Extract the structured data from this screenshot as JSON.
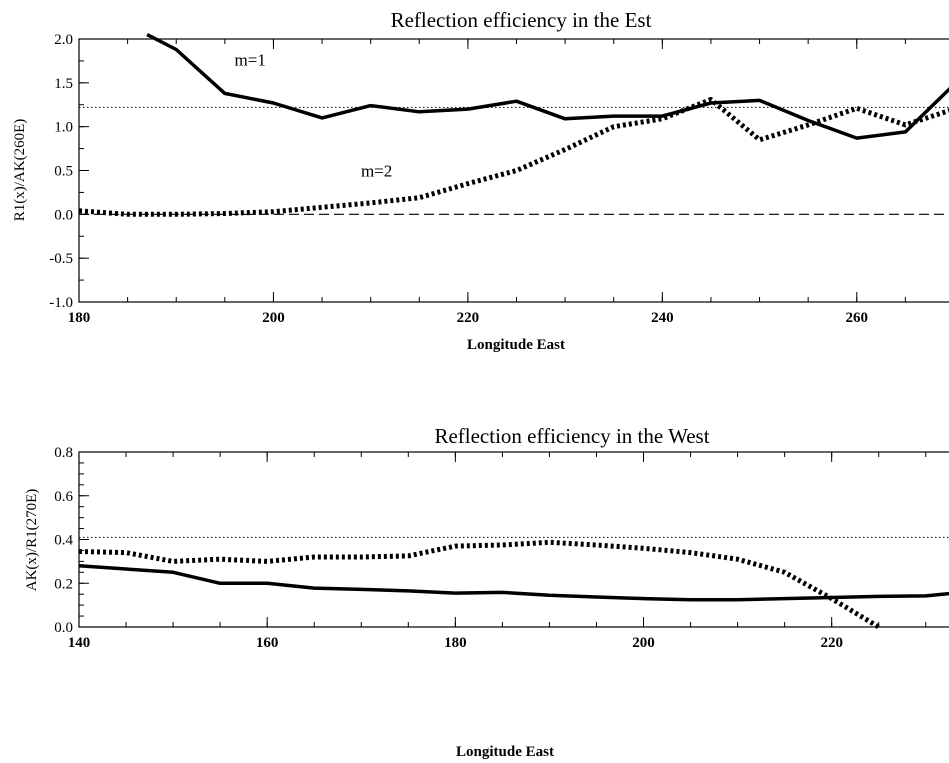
{
  "chart_data": [
    {
      "type": "line",
      "title": "Reflection efficiency in the Est",
      "xlabel": "Longitude East",
      "ylabel": "R1(x)/AK(260E)",
      "xlim": [
        180,
        270
      ],
      "ylim": [
        -1.0,
        2.0
      ],
      "xticks": [
        180,
        200,
        220,
        240,
        260
      ],
      "xtick_labels": [
        "180",
        "200",
        "220",
        "240",
        "260"
      ],
      "yticks": [
        -1.0,
        -0.5,
        0.0,
        0.5,
        1.0,
        1.5,
        2.0
      ],
      "ytick_labels": [
        "-1.0",
        "-0.5",
        "0.0",
        "0.5",
        "1.0",
        "1.5",
        "2.0"
      ],
      "reference_lines": [
        {
          "y": 1.22,
          "style": "dotted"
        },
        {
          "y": 0.0,
          "style": "dashed"
        }
      ],
      "annotations": [
        {
          "text": "m=1",
          "x": 196,
          "y": 1.7
        },
        {
          "text": "m=2",
          "x": 209,
          "y": 0.43
        }
      ],
      "series": [
        {
          "name": "m=1",
          "style": "solid",
          "x": [
            187,
            190,
            195,
            200,
            205,
            210,
            215,
            220,
            225,
            230,
            235,
            240,
            245,
            250,
            255,
            260,
            265,
            270
          ],
          "y": [
            2.05,
            1.88,
            1.38,
            1.27,
            1.1,
            1.24,
            1.17,
            1.2,
            1.29,
            1.09,
            1.12,
            1.12,
            1.27,
            1.3,
            1.07,
            0.87,
            0.94,
            1.48
          ]
        },
        {
          "name": "m=2",
          "style": "dotted",
          "x": [
            180,
            185,
            190,
            195,
            200,
            205,
            210,
            215,
            220,
            225,
            230,
            235,
            240,
            245,
            250,
            255,
            260,
            265,
            270
          ],
          "y": [
            0.04,
            0.0,
            0.0,
            0.01,
            0.03,
            0.08,
            0.13,
            0.19,
            0.35,
            0.5,
            0.74,
            1.0,
            1.09,
            1.31,
            0.85,
            1.02,
            1.21,
            1.02,
            1.2
          ]
        }
      ]
    },
    {
      "type": "line",
      "title": "Reflection efficiency in the West",
      "xlabel": "Longitude East",
      "ylabel": "AK(x)/R1(270E)",
      "xlim": [
        140,
        233
      ],
      "ylim": [
        0.0,
        0.8
      ],
      "xticks": [
        140,
        160,
        180,
        200,
        220
      ],
      "xtick_labels": [
        "140",
        "160",
        "180",
        "200",
        "220"
      ],
      "yticks": [
        0.0,
        0.2,
        0.4,
        0.6,
        0.8
      ],
      "ytick_labels": [
        "0.0",
        "0.2",
        "0.4",
        "0.6",
        "0.8"
      ],
      "reference_lines": [
        {
          "y": 0.41,
          "style": "dotted"
        }
      ],
      "series": [
        {
          "style": "solid",
          "x": [
            140,
            145,
            150,
            155,
            160,
            165,
            170,
            175,
            180,
            185,
            190,
            195,
            200,
            205,
            210,
            215,
            220,
            225,
            230,
            233
          ],
          "y": [
            0.28,
            0.265,
            0.25,
            0.2,
            0.2,
            0.178,
            0.172,
            0.165,
            0.155,
            0.158,
            0.145,
            0.137,
            0.13,
            0.125,
            0.125,
            0.13,
            0.135,
            0.14,
            0.142,
            0.155
          ]
        },
        {
          "style": "dotted",
          "x": [
            140,
            145,
            150,
            155,
            160,
            165,
            170,
            175,
            180,
            185,
            190,
            195,
            200,
            205,
            210,
            215,
            220,
            225
          ],
          "y": [
            0.345,
            0.34,
            0.3,
            0.31,
            0.3,
            0.32,
            0.32,
            0.325,
            0.37,
            0.375,
            0.387,
            0.375,
            0.36,
            0.34,
            0.31,
            0.25,
            0.13,
            0.0
          ]
        }
      ]
    }
  ]
}
